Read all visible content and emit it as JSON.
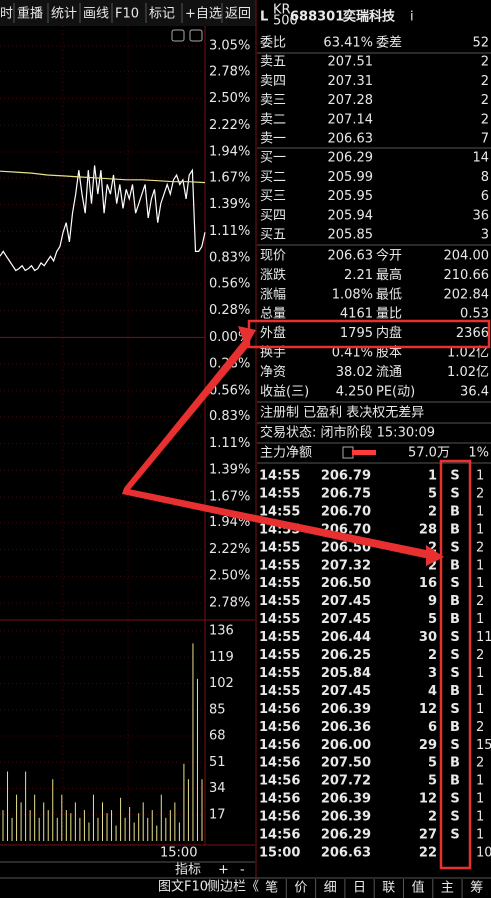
{
  "toolbar": [
    "时",
    "重播",
    "统计",
    "画线",
    "F10",
    "标记",
    "+自选",
    "返回"
  ],
  "header": {
    "tag": "L",
    "badge_top": "KR",
    "badge_bottom": "500",
    "code": "688301",
    "name": "奕瑞科技",
    "suffix": "i"
  },
  "order_ratio": {
    "cells": [
      "委比",
      "63.41%",
      "委差",
      "52"
    ],
    "colors": [
      "#e8e8e8",
      "#ff3b3b",
      "#e8e8e8",
      "#ff3b3b"
    ]
  },
  "asks": {
    "rows": [
      [
        "卖五",
        "207.51",
        "2"
      ],
      [
        "卖四",
        "207.31",
        "2"
      ],
      [
        "卖三",
        "207.28",
        "2"
      ],
      [
        "卖二",
        "207.14",
        "2"
      ],
      [
        "卖一",
        "206.63",
        "7"
      ]
    ],
    "price_colors": [
      "#ff3b3b",
      "#ff3b3b",
      "#ff3b3b",
      "#ff3b3b",
      "#ff3b3b"
    ]
  },
  "bids": {
    "rows": [
      [
        "买一",
        "206.29",
        "14"
      ],
      [
        "买二",
        "205.99",
        "8"
      ],
      [
        "买三",
        "205.95",
        "6"
      ],
      [
        "买四",
        "205.94",
        "36"
      ],
      [
        "买五",
        "205.85",
        "3"
      ]
    ],
    "price_colors": [
      "#ff3b3b",
      "#22e022",
      "#22e022",
      "#22e022",
      "#22e022"
    ]
  },
  "quotes": [
    {
      "cells": [
        "现价",
        "206.63",
        "今开",
        "204.00"
      ],
      "colors": [
        "#e8e8e8",
        "#ff3b3b",
        "#e8e8e8",
        "#22e022"
      ]
    },
    {
      "cells": [
        "涨跌",
        "2.21",
        "最高",
        "210.66"
      ],
      "colors": [
        "#e8e8e8",
        "#ff3b3b",
        "#e8e8e8",
        "#ff3b3b"
      ]
    },
    {
      "cells": [
        "涨幅",
        "1.08%",
        "最低",
        "202.84"
      ],
      "colors": [
        "#e8e8e8",
        "#ff3b3b",
        "#e8e8e8",
        "#22e022"
      ]
    },
    {
      "cells": [
        "总量",
        "4161",
        "量比",
        "0.53"
      ],
      "colors": [
        "#e8e8e8",
        "#f0e040",
        "#e8e8e8",
        "#22e022"
      ]
    },
    {
      "cells": [
        "外盘",
        "1795",
        "内盘",
        "2366"
      ],
      "colors": [
        "#e8e8e8",
        "#ff3b3b",
        "#e8e8e8",
        "#22e022"
      ]
    },
    {
      "cells": [
        "换手",
        "0.41%",
        "股本",
        "1.02亿"
      ],
      "colors": [
        "#e8e8e8",
        "#e8e8e8",
        "#e8e8e8",
        "#e8e8e8"
      ]
    },
    {
      "cells": [
        "净资",
        "38.02",
        "流通",
        "1.02亿"
      ],
      "colors": [
        "#e8e8e8",
        "#e8e8e8",
        "#e8e8e8",
        "#e8e8e8"
      ]
    },
    {
      "cells": [
        "收益(三)",
        "4.250",
        "PE(动)",
        "36.4"
      ],
      "colors": [
        "#e8e8e8",
        "#e8e8e8",
        "#e8e8e8",
        "#e8e8e8"
      ]
    }
  ],
  "notice": "注册制 已盈利 表决权无差异",
  "status": "交易状态: 闭市阶段 15:30:09",
  "main_flow": {
    "label": "主力净额",
    "amount": "57.0万",
    "ratio": "1%"
  },
  "trades": [
    [
      "14:55",
      "206.79",
      "1",
      "S",
      "1"
    ],
    [
      "14:55",
      "206.75",
      "5",
      "S",
      "2"
    ],
    [
      "14:55",
      "206.70",
      "2",
      "B",
      "1"
    ],
    [
      "14:55",
      "206.70",
      "28",
      "B",
      "1"
    ],
    [
      "14:55",
      "206.50",
      "2",
      "S",
      "2"
    ],
    [
      "14:55",
      "207.32",
      "2",
      "B",
      "1"
    ],
    [
      "14:55",
      "206.50",
      "16",
      "S",
      "1"
    ],
    [
      "14:55",
      "207.45",
      "9",
      "B",
      "2"
    ],
    [
      "14:55",
      "207.45",
      "5",
      "B",
      "1"
    ],
    [
      "14:55",
      "206.44",
      "30",
      "S",
      "11"
    ],
    [
      "14:55",
      "206.25",
      "2",
      "S",
      "2"
    ],
    [
      "14:55",
      "205.84",
      "3",
      "S",
      "1"
    ],
    [
      "14:55",
      "207.45",
      "4",
      "B",
      "1"
    ],
    [
      "14:56",
      "206.39",
      "12",
      "S",
      "1"
    ],
    [
      "14:56",
      "206.36",
      "6",
      "B",
      "2"
    ],
    [
      "14:56",
      "206.00",
      "29",
      "S",
      "15"
    ],
    [
      "14:56",
      "207.50",
      "5",
      "B",
      "2"
    ],
    [
      "14:56",
      "207.72",
      "5",
      "B",
      "1"
    ],
    [
      "14:56",
      "206.39",
      "12",
      "S",
      "1"
    ],
    [
      "14:56",
      "206.39",
      "2",
      "S",
      "1"
    ],
    [
      "14:56",
      "206.29",
      "27",
      "S",
      "1"
    ],
    [
      "15:00",
      "206.63",
      "22",
      "",
      "10"
    ]
  ],
  "trade_price_colors": [
    "#ff3b3b",
    "#ff3b3b",
    "#ff3b3b",
    "#ff3b3b",
    "#ff3b3b",
    "#ff3b3b",
    "#ff3b3b",
    "#ff3b3b",
    "#ff3b3b",
    "#ff3b3b",
    "#ff3b3b",
    "#22e022",
    "#ff3b3b",
    "#ff3b3b",
    "#ff3b3b",
    "#ff3b3b",
    "#ff3b3b",
    "#ff3b3b",
    "#ff3b3b",
    "#ff3b3b",
    "#ff3b3b",
    "#ff3b3b"
  ],
  "bottom_left": {
    "indicator": "指标",
    "plus": "+",
    "minus": "-",
    "f10": "图文F10",
    "sidebar": "侧边栏《"
  },
  "tabs": [
    "笔",
    "价",
    "细",
    "日",
    "联",
    "值",
    "主",
    "筹"
  ],
  "chart_data": {
    "type": "line",
    "ylim": [
      -2.78,
      3.05
    ],
    "yticks": [
      {
        "value": 3.05,
        "label": "3.05%"
      },
      {
        "value": 2.78,
        "label": "2.78%"
      },
      {
        "value": 2.5,
        "label": "2.50%"
      },
      {
        "value": 2.22,
        "label": "2.22%"
      },
      {
        "value": 1.94,
        "label": "1.94%"
      },
      {
        "value": 1.67,
        "label": "1.67%"
      },
      {
        "value": 1.39,
        "label": "1.39%"
      },
      {
        "value": 1.11,
        "label": "1.11%"
      },
      {
        "value": 0.83,
        "label": "0.83%"
      },
      {
        "value": 0.56,
        "label": "0.56%"
      },
      {
        "value": 0.28,
        "label": "0.28%"
      },
      {
        "value": 0,
        "label": "0.00%"
      },
      {
        "value": -0.28,
        "label": "0.28%"
      },
      {
        "value": -0.56,
        "label": "0.56%"
      },
      {
        "value": -0.83,
        "label": "0.83%"
      },
      {
        "value": -1.11,
        "label": "1.11%"
      },
      {
        "value": -1.39,
        "label": "1.39%"
      },
      {
        "value": -1.67,
        "label": "1.67%"
      },
      {
        "value": -1.94,
        "label": "1.94%"
      },
      {
        "value": -2.22,
        "label": "2.22%"
      },
      {
        "value": -2.5,
        "label": "2.50%"
      },
      {
        "value": -2.78,
        "label": "2.78%"
      }
    ],
    "up_color": "#ff3b3b",
    "down_color": "#22e022",
    "series": [
      {
        "name": "price",
        "color": "#ffffff",
        "values": [
          0.85,
          0.9,
          0.85,
          0.8,
          0.75,
          0.7,
          0.72,
          0.75,
          0.7,
          0.72,
          0.75,
          0.7,
          0.72,
          0.78,
          0.75,
          0.8,
          0.85,
          0.8,
          0.9,
          0.95,
          1.1,
          1.2,
          1.0,
          1.3,
          1.5,
          1.75,
          1.5,
          1.3,
          1.75,
          1.4,
          1.8,
          1.5,
          1.75,
          1.3,
          1.6,
          1.5,
          1.7,
          1.4,
          1.6,
          1.35,
          1.55,
          1.45,
          1.6,
          1.3,
          1.4,
          1.5,
          1.6,
          1.25,
          1.45,
          1.55,
          1.2,
          1.4,
          1.5,
          1.6,
          1.5,
          1.65,
          1.7,
          1.6,
          1.65,
          1.45,
          1.7,
          1.75,
          0.9,
          0.9,
          0.95,
          1.1
        ]
      },
      {
        "name": "average",
        "color": "#e8e08a",
        "values": [
          1.74,
          1.73,
          1.72,
          1.7,
          1.69,
          1.68,
          1.67,
          1.66,
          1.65,
          1.65,
          1.64,
          1.63,
          1.63,
          1.62
        ]
      }
    ],
    "volume": {
      "color": "#e8e08a",
      "ylim": [
        0,
        136
      ],
      "yticks": [
        17,
        34,
        51,
        68,
        85,
        102,
        119,
        136
      ],
      "values": [
        20,
        45,
        15,
        30,
        25,
        45,
        20,
        30,
        15,
        25,
        20,
        40,
        15,
        30,
        20,
        18,
        25,
        15,
        20,
        12,
        30,
        15,
        25,
        18,
        20,
        10,
        28,
        15,
        22,
        12,
        18,
        25,
        15,
        20,
        10,
        30,
        15,
        20,
        25,
        12,
        50,
        40,
        128,
        105,
        40
      ]
    },
    "x_end_label": "15:00"
  }
}
